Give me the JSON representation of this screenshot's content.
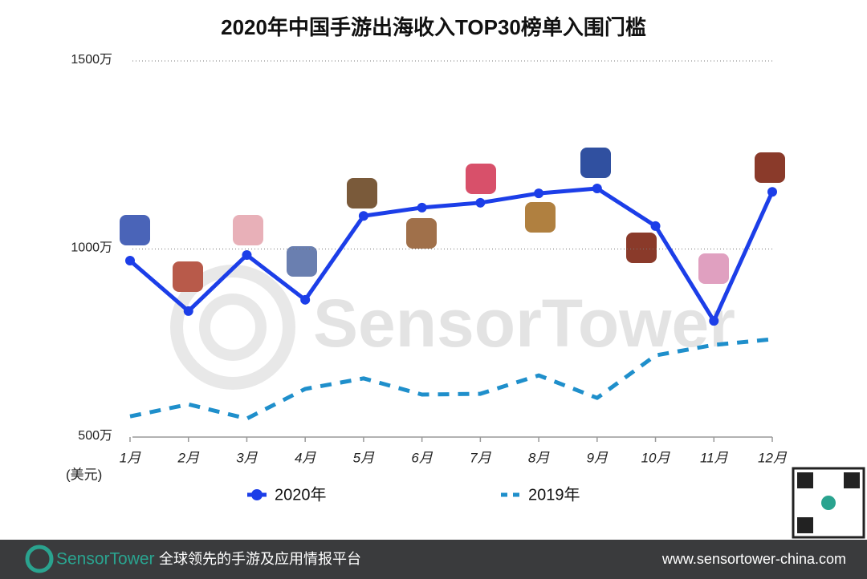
{
  "chart_data": {
    "type": "line",
    "title": "2020年中国手游出海收入TOP30榜单入围门槛",
    "y_label": "(美元)",
    "categories": [
      "1月",
      "2月",
      "3月",
      "4月",
      "5月",
      "6月",
      "7月",
      "8月",
      "9月",
      "10月",
      "11月",
      "12月"
    ],
    "series": [
      {
        "name": "2020年",
        "color": "#1c3ee8",
        "style": "solid",
        "values": [
          969,
          835,
          984,
          865,
          1088,
          1110,
          1123,
          1148,
          1161,
          1061,
          809,
          1152
        ]
      },
      {
        "name": "2019年",
        "color": "#1f8fcb",
        "style": "dashed",
        "values": [
          555,
          587,
          549,
          628,
          656,
          613,
          615,
          664,
          604,
          717,
          745,
          760
        ]
      }
    ],
    "ylim": [
      500,
      1500
    ],
    "yticks": [
      {
        "value": 500,
        "label": "500万"
      },
      {
        "value": 1000,
        "label": "1000万"
      },
      {
        "value": 1500,
        "label": "1500万"
      }
    ],
    "grid": true,
    "legend": "bottom"
  },
  "footer": {
    "brand": "SensorTower",
    "slogan": "全球领先的手游及应用情报平台",
    "url": "www.sensortower-china.com"
  }
}
